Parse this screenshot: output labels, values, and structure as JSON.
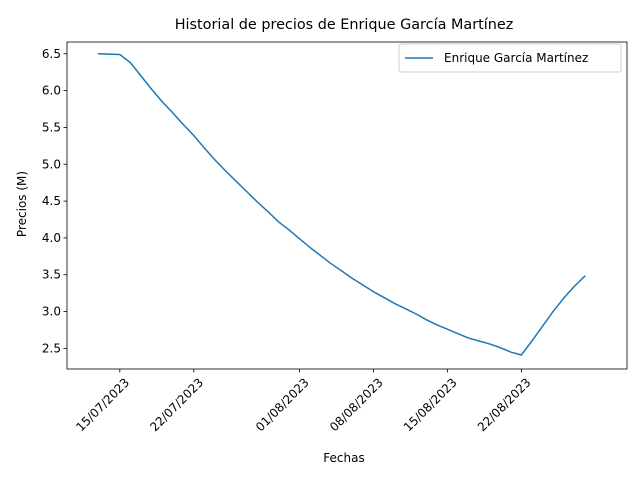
{
  "chart_data": {
    "type": "line",
    "title": "Historial de precios de Enrique García Martínez",
    "xlabel": "Fechas",
    "ylabel": "Precios (M)",
    "x_tick_labels": [
      "15/07/2023",
      "22/07/2023",
      "01/08/2023",
      "08/08/2023",
      "15/08/2023",
      "22/08/2023"
    ],
    "x_ticks": [
      "2023-07-15",
      "2023-07-22",
      "2023-08-01",
      "2023-08-08",
      "2023-08-15",
      "2023-08-22"
    ],
    "y_ticks": [
      2.5,
      3.0,
      3.5,
      4.0,
      4.5,
      5.0,
      5.5,
      6.0,
      6.5
    ],
    "y_tick_labels": [
      "2.5",
      "3.0",
      "3.5",
      "4.0",
      "4.5",
      "5.0",
      "5.5",
      "6.0",
      "6.5"
    ],
    "xlim": [
      "2023-07-10",
      "2023-09-01"
    ],
    "ylim": [
      2.22,
      6.66
    ],
    "grid": false,
    "legend_position": "top-right",
    "series": [
      {
        "name": "Enrique García Martínez",
        "color": "#1f77b4",
        "x": [
          "2023-07-13",
          "2023-07-15",
          "2023-07-16",
          "2023-07-17",
          "2023-07-18",
          "2023-07-19",
          "2023-07-20",
          "2023-07-21",
          "2023-07-22",
          "2023-07-23",
          "2023-07-24",
          "2023-07-25",
          "2023-07-26",
          "2023-07-27",
          "2023-07-28",
          "2023-07-29",
          "2023-07-30",
          "2023-07-31",
          "2023-08-01",
          "2023-08-02",
          "2023-08-03",
          "2023-08-04",
          "2023-08-05",
          "2023-08-06",
          "2023-08-07",
          "2023-08-08",
          "2023-08-09",
          "2023-08-10",
          "2023-08-11",
          "2023-08-12",
          "2023-08-13",
          "2023-08-14",
          "2023-08-15",
          "2023-08-16",
          "2023-08-17",
          "2023-08-18",
          "2023-08-19",
          "2023-08-20",
          "2023-08-21",
          "2023-08-22",
          "2023-08-23",
          "2023-08-24",
          "2023-08-25",
          "2023-08-26",
          "2023-08-27",
          "2023-08-28"
        ],
        "values": [
          6.5,
          6.49,
          6.38,
          6.2,
          6.02,
          5.85,
          5.7,
          5.54,
          5.39,
          5.22,
          5.06,
          4.91,
          4.77,
          4.63,
          4.49,
          4.36,
          4.22,
          4.11,
          3.99,
          3.87,
          3.76,
          3.65,
          3.55,
          3.45,
          3.36,
          3.27,
          3.19,
          3.11,
          3.04,
          2.97,
          2.89,
          2.82,
          2.76,
          2.7,
          2.64,
          2.6,
          2.56,
          2.51,
          2.45,
          2.41,
          2.6,
          2.8,
          3.0,
          3.18,
          3.34,
          3.48
        ]
      }
    ]
  }
}
